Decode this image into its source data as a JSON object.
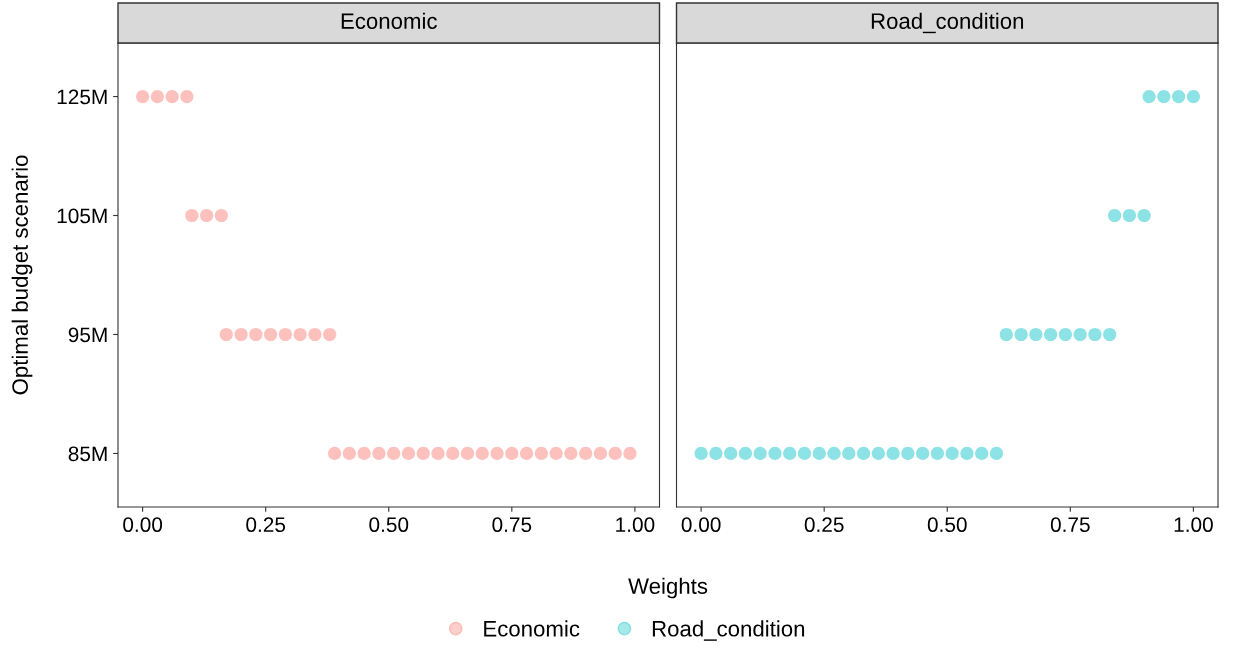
{
  "chart_data": [
    {
      "type": "scatter",
      "orientation": "horizontal",
      "title": "Economic",
      "xlabel": "Weights",
      "ylabel": "Optimal budget scenario",
      "categories": [
        "125M",
        "105M",
        "95M",
        "85M"
      ],
      "xlim": [
        -0.05,
        1.05
      ],
      "xticks": [
        {
          "value": 0,
          "label": "0.00"
        },
        {
          "value": 0.25,
          "label": "0.25"
        },
        {
          "value": 0.5,
          "label": "0.50"
        },
        {
          "value": 0.75,
          "label": "0.75"
        },
        {
          "value": 1,
          "label": "1.00"
        }
      ],
      "grid": false,
      "legend": "bottom",
      "marker": "circle",
      "series": [
        {
          "name": "Economic",
          "color": "#f8766d",
          "values": [
            0.0,
            0.1,
            0.17,
            0.39
          ]
        },
        {
          "color": "#f8766d",
          "values": [
            0.03,
            0.13,
            0.2,
            0.42
          ]
        },
        {
          "color": "#f8766d",
          "values": [
            0.06,
            0.16,
            0.23,
            0.45
          ]
        },
        {
          "color": "#f8766d",
          "values": [
            0.09,
            null,
            0.26,
            0.48
          ]
        },
        {
          "color": "#f8766d",
          "values": [
            null,
            null,
            0.29,
            0.51
          ]
        },
        {
          "color": "#f8766d",
          "values": [
            null,
            null,
            0.32,
            0.54
          ]
        },
        {
          "color": "#f8766d",
          "values": [
            null,
            null,
            0.35,
            0.57
          ]
        },
        {
          "color": "#f8766d",
          "values": [
            null,
            null,
            0.38,
            0.6
          ]
        },
        {
          "color": "#f8766d",
          "values": [
            null,
            null,
            null,
            0.63
          ]
        },
        {
          "color": "#f8766d",
          "values": [
            null,
            null,
            null,
            0.66
          ]
        },
        {
          "color": "#f8766d",
          "values": [
            null,
            null,
            null,
            0.69
          ]
        },
        {
          "color": "#f8766d",
          "values": [
            null,
            null,
            null,
            0.72
          ]
        },
        {
          "color": "#f8766d",
          "values": [
            null,
            null,
            null,
            0.75
          ]
        },
        {
          "color": "#f8766d",
          "values": [
            null,
            null,
            null,
            0.78
          ]
        },
        {
          "color": "#f8766d",
          "values": [
            null,
            null,
            null,
            0.81
          ]
        },
        {
          "color": "#f8766d",
          "values": [
            null,
            null,
            null,
            0.84
          ]
        },
        {
          "color": "#f8766d",
          "values": [
            null,
            null,
            null,
            0.87
          ]
        },
        {
          "color": "#f8766d",
          "values": [
            null,
            null,
            null,
            0.9
          ]
        },
        {
          "color": "#f8766d",
          "values": [
            null,
            null,
            null,
            0.93
          ]
        },
        {
          "color": "#f8766d",
          "values": [
            null,
            null,
            null,
            0.96
          ]
        },
        {
          "color": "#f8766d",
          "values": [
            null,
            null,
            null,
            0.99
          ]
        }
      ]
    },
    {
      "type": "scatter",
      "orientation": "horizontal",
      "title": "Road_condition",
      "xlim": [
        -0.05,
        1.05
      ],
      "xticks": [
        {
          "value": 0,
          "label": "0.00"
        },
        {
          "value": 0.25,
          "label": "0.25"
        },
        {
          "value": 0.5,
          "label": "0.50"
        },
        {
          "value": 0.75,
          "label": "0.75"
        },
        {
          "value": 1,
          "label": "1.00"
        }
      ],
      "grid": false,
      "legend": "bottom",
      "marker": "circle",
      "tick_labels": "x",
      "series": [
        {
          "name": "Road_condition",
          "color": "#00bfc4",
          "values": [
            0.91,
            0.84,
            0.62,
            0.0
          ]
        },
        {
          "color": "#00bfc4",
          "values": [
            0.94,
            0.87,
            0.65,
            0.03
          ]
        },
        {
          "color": "#00bfc4",
          "values": [
            0.97,
            0.9,
            0.68,
            0.06
          ]
        },
        {
          "color": "#00bfc4",
          "values": [
            1.0,
            null,
            0.71,
            0.09
          ]
        },
        {
          "color": "#00bfc4",
          "values": [
            null,
            null,
            0.74,
            0.12
          ]
        },
        {
          "color": "#00bfc4",
          "values": [
            null,
            null,
            0.77,
            0.15
          ]
        },
        {
          "color": "#00bfc4",
          "values": [
            null,
            null,
            0.8,
            0.18
          ]
        },
        {
          "color": "#00bfc4",
          "values": [
            null,
            null,
            0.83,
            0.21
          ]
        },
        {
          "color": "#00bfc4",
          "values": [
            null,
            null,
            null,
            0.24
          ]
        },
        {
          "color": "#00bfc4",
          "values": [
            null,
            null,
            null,
            0.27
          ]
        },
        {
          "color": "#00bfc4",
          "values": [
            null,
            null,
            null,
            0.3
          ]
        },
        {
          "color": "#00bfc4",
          "values": [
            null,
            null,
            null,
            0.33
          ]
        },
        {
          "color": "#00bfc4",
          "values": [
            null,
            null,
            null,
            0.36
          ]
        },
        {
          "color": "#00bfc4",
          "values": [
            null,
            null,
            null,
            0.39
          ]
        },
        {
          "color": "#00bfc4",
          "values": [
            null,
            null,
            null,
            0.42
          ]
        },
        {
          "color": "#00bfc4",
          "values": [
            null,
            null,
            null,
            0.45
          ]
        },
        {
          "color": "#00bfc4",
          "values": [
            null,
            null,
            null,
            0.48
          ]
        },
        {
          "color": "#00bfc4",
          "values": [
            null,
            null,
            null,
            0.51
          ]
        },
        {
          "color": "#00bfc4",
          "values": [
            null,
            null,
            null,
            0.54
          ]
        },
        {
          "color": "#00bfc4",
          "values": [
            null,
            null,
            null,
            0.57
          ]
        },
        {
          "color": "#00bfc4",
          "values": [
            null,
            null,
            null,
            0.6
          ]
        }
      ]
    }
  ]
}
